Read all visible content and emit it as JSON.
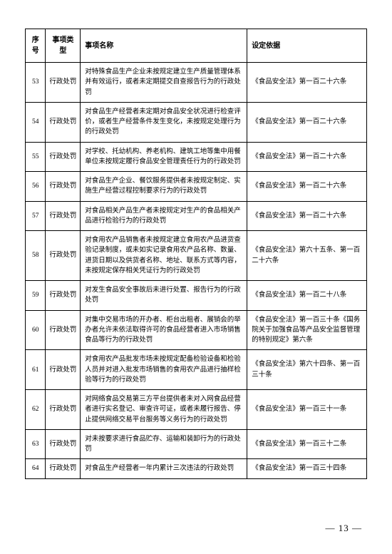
{
  "headers": {
    "num": "序号",
    "type": "事项类型",
    "name": "事项名称",
    "basis": "设定依据"
  },
  "rows": [
    {
      "num": "53",
      "type": "行政处罚",
      "name": "对特殊食品生产企业未按规定建立生产质量管理体系并有效运行，或者未定期提交自查报告行为的行政处罚",
      "basis": "《食品安全法》第一百二十六条"
    },
    {
      "num": "54",
      "type": "行政处罚",
      "name": "对食品生产经营者未定期对食品安全状况进行检查评价，或者生产经营条件发生变化，未按规定处理行为的行政处罚",
      "basis": "《食品安全法》第一百二十六条"
    },
    {
      "num": "55",
      "type": "行政处罚",
      "name": "对学校、托幼机构、养老机构、建筑工地等集中用餐单位未按规定履行食品安全管理责任行为的行政处罚",
      "basis": "《食品安全法》第一百二十六条"
    },
    {
      "num": "56",
      "type": "行政处罚",
      "name": "对食品生产企业、餐饮服务提供者未按规定制定、实施生产经营过程控制要求行为的行政处罚",
      "basis": "《食品安全法》第一百二十六条"
    },
    {
      "num": "57",
      "type": "行政处罚",
      "name": "对食品相关产品生产者未按规定对生产的食品相关产品进行检验行为的行政处罚",
      "basis": "《食品安全法》第一百二十六条"
    },
    {
      "num": "58",
      "type": "行政处罚",
      "name": "对食用农产品销售者未按规定建立食用农产品进货查验记录制度，或未如实记录食用农产品名称、数量、进货日期以及供货者名称、地址、联系方式等内容，未按规定保存相关凭证行为的行政处罚",
      "basis": "《食品安全法》第六十五条、第一百二十六条"
    },
    {
      "num": "59",
      "type": "行政处罚",
      "name": "对发生食品安全事故后未进行处置、报告行为的行政处罚",
      "basis": "《食品安全法》第一百二十八条"
    },
    {
      "num": "60",
      "type": "行政处罚",
      "name": "对集中交易市场的开办者、柜台出租者、展销会的举办者允许未依法取得许可的食品经营者进入市场销售食品等行为的行政处罚",
      "basis": "《食品安全法》第一百三十条《国务院关于加强食品等产品安全监督管理的特别规定》第六条"
    },
    {
      "num": "61",
      "type": "行政处罚",
      "name": "对食用农产品批发市场未按规定配备检验设备和检验人员并对进入批发市场销售的食用农产品进行抽样检验等行为的行政处罚",
      "basis": "《食品安全法》第六十四条、第一百三十条"
    },
    {
      "num": "62",
      "type": "行政处罚",
      "name": "对网络食品交易第三方平台提供者未对入网食品经营者进行实名登记、审查许可证，或者未履行报告、停止提供网络交易平台服务等义务行为的行政处罚",
      "basis": "《食品安全法》第一百三十一条"
    },
    {
      "num": "63",
      "type": "行政处罚",
      "name": "对未按要求进行食品贮存、运输和装卸行为的行政处罚",
      "basis": "《食品安全法》第一百三十二条"
    },
    {
      "num": "64",
      "type": "行政处罚",
      "name": "对食品生产经营者一年内累计三次违法的行政处罚",
      "basis": "《食品安全法》第一百三十四条"
    }
  ],
  "pageNumber": "13"
}
